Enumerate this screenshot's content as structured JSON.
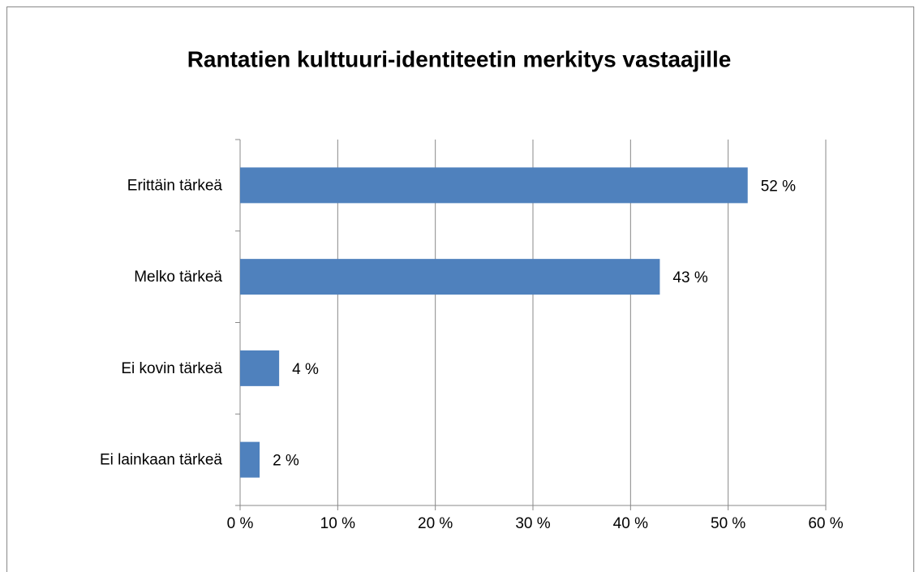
{
  "chart_data": {
    "type": "barh",
    "title": "Rantatien kulttuuri-identiteetin merkitys vastaajille",
    "categories": [
      "Erittäin tärkeä",
      "Melko tärkeä",
      "Ei kovin tärkeä",
      "Ei lainkaan tärkeä"
    ],
    "values": [
      52,
      43,
      4,
      2
    ],
    "value_labels": [
      "52 %",
      "43 %",
      "4 %",
      "2 %"
    ],
    "color": "#4f81bd",
    "xlim": [
      0,
      60
    ],
    "xticks": [
      {
        "value": 0,
        "label": "0 %"
      },
      {
        "value": 10,
        "label": "10 %"
      },
      {
        "value": 20,
        "label": "20 %"
      },
      {
        "value": 30,
        "label": "30 %"
      },
      {
        "value": 40,
        "label": "40 %"
      },
      {
        "value": 50,
        "label": "50 %"
      },
      {
        "value": 60,
        "label": "60 %"
      }
    ],
    "grid": true
  }
}
